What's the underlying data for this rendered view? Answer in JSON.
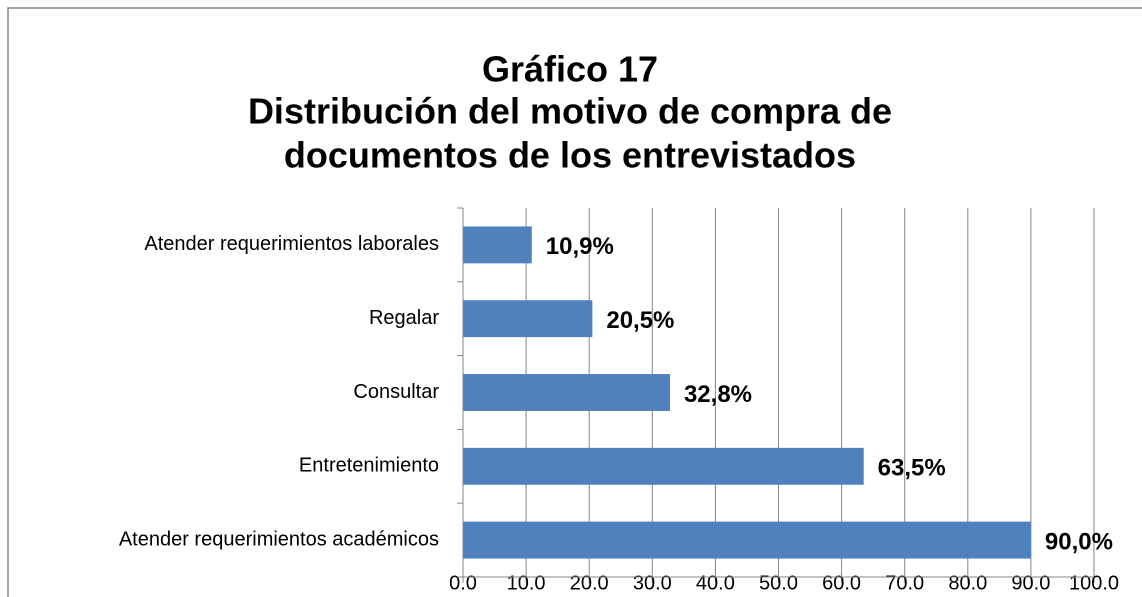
{
  "chart_data": {
    "type": "bar",
    "orientation": "horizontal",
    "title": [
      "Gráfico 17",
      "Distribución del motivo de compra de",
      "documentos de los entrevistados"
    ],
    "categories": [
      "Atender requerimientos laborales",
      "Regalar",
      "Consultar",
      "Entretenimiento",
      "Atender requerimientos académicos"
    ],
    "values": [
      10.9,
      20.5,
      32.8,
      63.5,
      90.0
    ],
    "value_labels": [
      "10,9%",
      "20,5%",
      "32,8%",
      "63,5%",
      "90,0%"
    ],
    "color": "#4f81bd",
    "xlim": [
      0,
      100
    ],
    "xticks": [
      {
        "value": 0,
        "label": "0.0"
      },
      {
        "value": 10,
        "label": "10.0"
      },
      {
        "value": 20,
        "label": "20.0"
      },
      {
        "value": 30,
        "label": "30.0"
      },
      {
        "value": 40,
        "label": "40.0"
      },
      {
        "value": 50,
        "label": "50.0"
      },
      {
        "value": 60,
        "label": "60.0"
      },
      {
        "value": 70,
        "label": "70.0"
      },
      {
        "value": 80,
        "label": "80.0"
      },
      {
        "value": 90,
        "label": "90.0"
      },
      {
        "value": 100,
        "label": "100.0"
      }
    ],
    "grid": true
  }
}
